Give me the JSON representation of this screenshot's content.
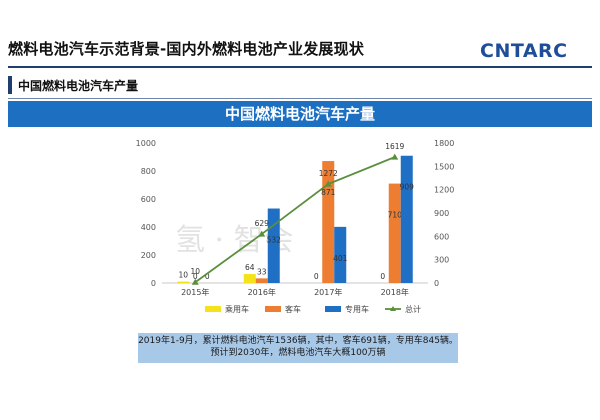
{
  "header": {
    "title": "燃料电池汽车示范背景-国内外燃料电池产业发展现状",
    "logo": "CNTARC"
  },
  "section": {
    "title": "中国燃料电池汽车产量"
  },
  "banner": {
    "title": "中国燃料电池汽车产量"
  },
  "note": {
    "line1": "2019年1-9月，累计燃料电池汽车1536辆，其中，客车691辆，专用车845辆。",
    "line2": "预计到2030年，燃料电池汽车大概100万辆"
  },
  "watermark": "氢 · 智会",
  "chart_data": {
    "type": "bar",
    "categories": [
      "2015年",
      "2016年",
      "2017年",
      "2018年"
    ],
    "series": [
      {
        "name": "乘用车",
        "kind": "bar",
        "axis": "left",
        "color": "#f5e21a",
        "values": [
          10,
          64,
          0,
          0
        ]
      },
      {
        "name": "客车",
        "kind": "bar",
        "axis": "left",
        "color": "#ed7d31",
        "values": [
          0,
          33,
          871,
          710
        ]
      },
      {
        "name": "专用车",
        "kind": "bar",
        "axis": "left",
        "color": "#1f6fc5",
        "values": [
          0,
          532,
          401,
          909
        ]
      },
      {
        "name": "总计",
        "kind": "line",
        "axis": "right",
        "color": "#5a8f3c",
        "values": [
          10,
          629,
          1272,
          1619
        ]
      }
    ],
    "left_axis": {
      "ylim": [
        0,
        1000
      ],
      "ticks": [
        0,
        200,
        400,
        600,
        800,
        1000
      ]
    },
    "right_axis": {
      "ylim": [
        0,
        1800
      ],
      "ticks": [
        0,
        300,
        600,
        900,
        1200,
        1500,
        1800
      ]
    },
    "data_labels": {
      "乘用车": [
        "10",
        "64",
        "0",
        "0"
      ],
      "客车": [
        "0",
        "33",
        "871",
        "710"
      ],
      "专用车": [
        "0",
        "532",
        "401",
        "909"
      ],
      "总计": [
        "10",
        "629",
        "1272",
        "1619"
      ]
    },
    "legend": {
      "position": "bottom",
      "items": [
        "乘用车",
        "客车",
        "专用车",
        "总计"
      ]
    },
    "grid": false
  }
}
